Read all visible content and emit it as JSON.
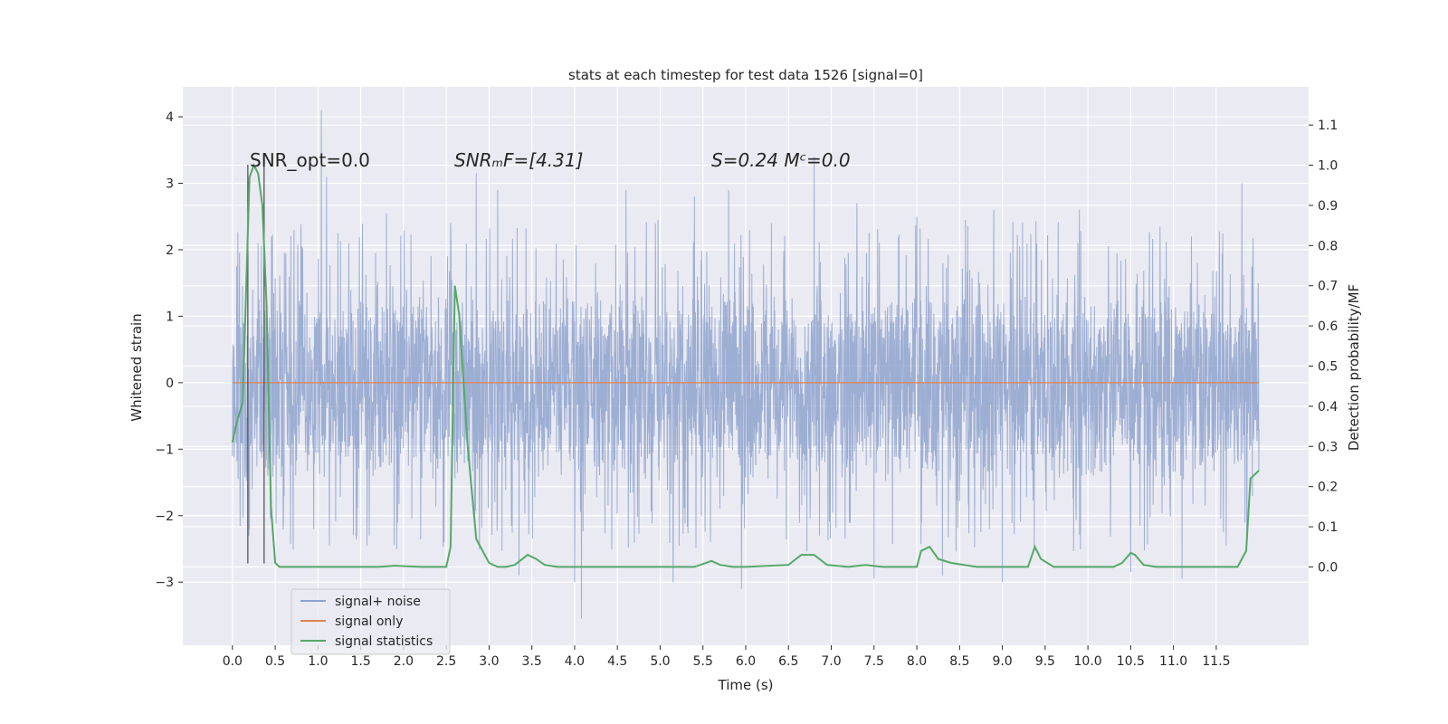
{
  "chart_data": {
    "type": "line",
    "title": "stats at each timestep for test data 1526 [signal=0]",
    "xlabel": "Time (s)",
    "ylabel": "Whitened strain",
    "y2label": "Detection probability/MF",
    "xlim": [
      -0.58,
      12.58
    ],
    "ylim": [
      -3.95,
      4.45
    ],
    "y2lim": [
      -0.195,
      1.195
    ],
    "x_ticks": [
      0.0,
      0.5,
      1.0,
      1.5,
      2.0,
      2.5,
      3.0,
      3.5,
      4.0,
      4.5,
      5.0,
      5.5,
      6.0,
      6.5,
      7.0,
      7.5,
      8.0,
      8.5,
      9.0,
      9.5,
      10.0,
      10.5,
      11.0,
      11.5
    ],
    "x_tick_labels": [
      "0.0",
      "0.5",
      "1.0",
      "1.5",
      "2.0",
      "2.5",
      "3.0",
      "3.5",
      "4.0",
      "4.5",
      "5.0",
      "5.5",
      "6.0",
      "6.5",
      "7.0",
      "7.5",
      "8.0",
      "8.5",
      "9.0",
      "9.5",
      "10.0",
      "10.5",
      "11.0",
      "11.5"
    ],
    "y_ticks": [
      -3,
      -2,
      -1,
      0,
      1,
      2,
      3,
      4
    ],
    "y_tick_labels": [
      "−3",
      "−2",
      "−1",
      "0",
      "1",
      "2",
      "3",
      "4"
    ],
    "y2_ticks": [
      0.0,
      0.1,
      0.2,
      0.3,
      0.4,
      0.5,
      0.6,
      0.7,
      0.8,
      0.9,
      1.0,
      1.1
    ],
    "y2_tick_labels": [
      "0.0",
      "0.1",
      "0.2",
      "0.3",
      "0.4",
      "0.5",
      "0.6",
      "0.7",
      "0.8",
      "0.9",
      "1.0",
      "1.1"
    ],
    "grid": true,
    "legend_position": "lower-left",
    "annotations": [
      {
        "text": "SNR_opt=0.0",
        "x": 0.2,
        "y": 3.3
      },
      {
        "text": "SNRₘF=[4.31]",
        "x": 2.6,
        "y": 3.3
      },
      {
        "text": "S=0.24   Mᶜ=0.0",
        "x": 5.6,
        "y": 3.3
      }
    ],
    "vertical_markers": [
      {
        "x": 0.18,
        "y_range": [
          -2.72,
          3.28
        ]
      },
      {
        "x": 0.37,
        "y_range": [
          -2.72,
          3.28
        ]
      }
    ],
    "series": [
      {
        "name": "signal+ noise",
        "color": "#8fa3ce",
        "axis": "left",
        "x_range": [
          0.0,
          12.0
        ],
        "typical_band": [
          -1.5,
          1.5
        ],
        "extremes": [
          {
            "x": 0.01,
            "y": -0.85
          },
          {
            "x": 0.05,
            "y": 1.75
          },
          {
            "x": 0.2,
            "y": -2.2
          },
          {
            "x": 0.3,
            "y": 2.1
          },
          {
            "x": 0.72,
            "y": 2.3
          },
          {
            "x": 0.95,
            "y": -2.2
          },
          {
            "x": 1.04,
            "y": 4.1
          },
          {
            "x": 1.1,
            "y": 3.1
          },
          {
            "x": 1.6,
            "y": -2.3
          },
          {
            "x": 1.8,
            "y": 2.55
          },
          {
            "x": 2.55,
            "y": 2.4
          },
          {
            "x": 2.85,
            "y": 3.15
          },
          {
            "x": 3.1,
            "y": 2.9
          },
          {
            "x": 3.35,
            "y": -2.9
          },
          {
            "x": 4.0,
            "y": -3.0
          },
          {
            "x": 4.08,
            "y": -3.55
          },
          {
            "x": 4.6,
            "y": 2.9
          },
          {
            "x": 5.15,
            "y": -3.0
          },
          {
            "x": 5.4,
            "y": 2.8
          },
          {
            "x": 5.8,
            "y": 2.9
          },
          {
            "x": 5.95,
            "y": -3.1
          },
          {
            "x": 6.3,
            "y": 2.4
          },
          {
            "x": 6.8,
            "y": 3.4
          },
          {
            "x": 7.3,
            "y": 2.7
          },
          {
            "x": 7.5,
            "y": -2.95
          },
          {
            "x": 8.0,
            "y": 2.5
          },
          {
            "x": 8.3,
            "y": -2.9
          },
          {
            "x": 8.9,
            "y": 2.6
          },
          {
            "x": 9.0,
            "y": -3.0
          },
          {
            "x": 9.9,
            "y": 2.6
          },
          {
            "x": 10.5,
            "y": -2.85
          },
          {
            "x": 11.1,
            "y": -2.95
          },
          {
            "x": 11.8,
            "y": 3.0
          },
          {
            "x": 11.99,
            "y": 1.5
          }
        ]
      },
      {
        "name": "signal only",
        "color": "#dd8452",
        "axis": "left",
        "x": [
          0.0,
          12.0
        ],
        "y": [
          0.0,
          0.0
        ]
      },
      {
        "name": "signal statistics",
        "color": "#55a868",
        "axis": "right",
        "x": [
          0.0,
          0.05,
          0.12,
          0.2,
          0.25,
          0.3,
          0.35,
          0.4,
          0.45,
          0.5,
          0.55,
          0.6,
          0.65,
          1.7,
          1.9,
          2.2,
          2.5,
          2.55,
          2.6,
          2.65,
          2.75,
          2.85,
          3.0,
          3.1,
          3.2,
          3.3,
          3.45,
          3.55,
          3.65,
          3.8,
          4.0,
          5.4,
          5.6,
          5.7,
          5.85,
          6.0,
          6.5,
          6.65,
          6.8,
          6.95,
          7.2,
          7.4,
          7.6,
          8.0,
          8.05,
          8.15,
          8.25,
          8.4,
          8.7,
          9.2,
          9.3,
          9.38,
          9.45,
          9.6,
          10.3,
          10.4,
          10.5,
          10.55,
          10.65,
          10.8,
          11.0,
          11.5,
          11.75,
          11.85,
          11.9,
          12.0
        ],
        "y": [
          0.31,
          0.36,
          0.41,
          0.97,
          1.0,
          0.98,
          0.9,
          0.65,
          0.15,
          0.01,
          0.0,
          0.0,
          0.0,
          0.0,
          0.003,
          0.0,
          0.0,
          0.05,
          0.7,
          0.63,
          0.3,
          0.07,
          0.01,
          0.0,
          0.0,
          0.005,
          0.03,
          0.02,
          0.005,
          0.0,
          0.0,
          0.0,
          0.015,
          0.005,
          0.0,
          0.0,
          0.005,
          0.03,
          0.03,
          0.005,
          0.0,
          0.005,
          0.0,
          0.0,
          0.04,
          0.05,
          0.02,
          0.01,
          0.0,
          0.0,
          0.0,
          0.05,
          0.02,
          0.0,
          0.0,
          0.01,
          0.035,
          0.03,
          0.005,
          0.0,
          0.0,
          0.0,
          0.0,
          0.04,
          0.22,
          0.24
        ]
      }
    ]
  }
}
